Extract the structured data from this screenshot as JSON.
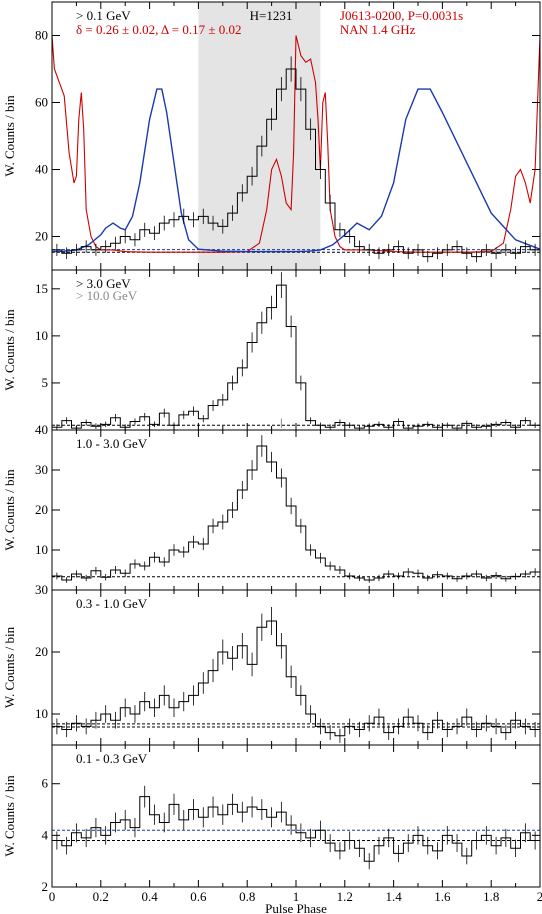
{
  "chart_data": [
    {
      "type": "line",
      "panel": "top",
      "ylabel": "W. Counts / bin",
      "ylim": [
        10,
        90
      ],
      "xlim": [
        0,
        2
      ],
      "yticks": [
        20,
        40,
        60,
        80
      ],
      "annotations": {
        "energy": "> 0.1 GeV",
        "h_test": "H=1231",
        "pulsar": "J0613-0200, P=0.0031s",
        "radio": "NAN 1.4 GHz",
        "delta": "δ = 0.26 ± 0.02, Δ = 0.17 ± 0.02"
      },
      "shaded_region": [
        0.6,
        1.1
      ],
      "background_levels": [
        15.3,
        16.1
      ],
      "profile": [
        16,
        15,
        16,
        17,
        16,
        17,
        18,
        20,
        19,
        22,
        21,
        24,
        25,
        26,
        25,
        26,
        24,
        23,
        27,
        33,
        38,
        47,
        55,
        64,
        70,
        64,
        52,
        40,
        30,
        22,
        20,
        17,
        16,
        15,
        16,
        17,
        15,
        16,
        14,
        15,
        16,
        17,
        15,
        14,
        16,
        15,
        16,
        15,
        17,
        16
      ],
      "radio_profile": {
        "x": [
          0,
          0.01,
          0.03,
          0.05,
          0.07,
          0.09,
          0.1,
          0.11,
          0.12,
          0.13,
          0.14,
          0.16,
          0.18,
          0.2,
          0.25,
          0.3,
          0.4,
          0.5,
          0.6,
          0.7,
          0.8,
          0.85,
          0.88,
          0.9,
          0.92,
          0.94,
          0.96,
          0.98,
          0.99,
          1.0,
          1.02,
          1.04,
          1.06,
          1.08,
          1.09,
          1.1,
          1.11,
          1.12,
          1.13,
          1.14,
          1.16,
          1.18,
          1.2,
          1.3,
          1.4,
          1.5,
          1.6,
          1.7,
          1.8,
          1.85,
          1.88,
          1.9,
          1.92,
          1.94,
          1.96,
          1.98,
          2.0
        ],
        "y": [
          80,
          70,
          66,
          62,
          45,
          36,
          38,
          55,
          63,
          52,
          28,
          20,
          17,
          16,
          16,
          15.5,
          15.3,
          15.3,
          15.3,
          15.3,
          15.5,
          18,
          28,
          40,
          43,
          38,
          30,
          28,
          45,
          80,
          74,
          72,
          73,
          66,
          55,
          40,
          60,
          63,
          48,
          28,
          20,
          17,
          16,
          16,
          15.5,
          15.3,
          15.3,
          15.3,
          15.5,
          18,
          28,
          38,
          40,
          36,
          30,
          40,
          80
        ]
      },
      "model": {
        "x": [
          0,
          0.05,
          0.1,
          0.15,
          0.2,
          0.22,
          0.25,
          0.28,
          0.3,
          0.33,
          0.36,
          0.4,
          0.43,
          0.45,
          0.47,
          0.5,
          0.53,
          0.56,
          0.6,
          0.7,
          0.8,
          0.9,
          1.0,
          1.05,
          1.1,
          1.15,
          1.2,
          1.25,
          1.3,
          1.35,
          1.4,
          1.45,
          1.5,
          1.55,
          1.6,
          1.7,
          1.8,
          1.9,
          2.0
        ],
        "y": [
          15.5,
          15.6,
          16,
          17.5,
          20.5,
          22.5,
          24,
          22.5,
          22,
          26,
          36,
          55,
          64,
          64,
          57,
          42,
          27,
          19,
          16.2,
          15.6,
          15.5,
          15.5,
          15.5,
          15.6,
          16,
          17.5,
          20.5,
          24,
          22,
          26,
          36,
          55,
          64,
          64,
          57,
          42,
          27,
          19,
          16.2
        ]
      }
    },
    {
      "type": "line",
      "panel": "high",
      "ylabel": "W. Counts / bin",
      "ylim": [
        0,
        17
      ],
      "yticks": [
        5,
        10,
        15
      ],
      "annotations": {
        "energy": "> 3.0 GeV",
        "energy2": "> 10.0 GeV"
      },
      "background_levels": [
        0.5
      ],
      "profile": [
        0.3,
        1.0,
        0.2,
        0.8,
        0.4,
        0.6,
        1.3,
        0.3,
        0.9,
        1.4,
        0.6,
        1.8,
        0.5,
        1.6,
        2.0,
        1.2,
        2.6,
        3.2,
        5.0,
        6.6,
        9.3,
        11.4,
        13.0,
        15.4,
        11.0,
        5.0,
        1.0,
        0.5,
        0.3,
        0.8,
        0.5,
        0.2,
        0.4,
        0.6,
        0.3,
        0.9,
        0.2,
        0.4,
        0.6,
        0.3,
        0.5,
        0.2,
        0.7,
        0.3,
        0.4,
        0.6,
        0.8,
        0.3,
        1.0,
        0.5
      ],
      "profile_high": [
        0,
        0,
        0,
        0,
        0,
        0,
        0,
        0,
        0,
        0,
        0,
        0,
        0,
        0,
        0,
        0,
        0,
        0,
        0,
        0,
        0,
        0,
        0,
        1.2,
        0,
        0,
        0,
        0,
        0,
        0,
        0,
        0,
        0,
        0,
        0,
        0,
        0,
        0,
        0,
        0,
        0,
        0,
        0,
        0,
        0,
        0,
        0,
        0,
        0,
        0
      ]
    },
    {
      "type": "line",
      "panel": "mid",
      "ylabel": "W. Counts / bin",
      "ylim": [
        0,
        40
      ],
      "yticks": [
        10,
        20,
        30,
        40
      ],
      "annotations": {
        "energy": "1.0 - 3.0 GeV"
      },
      "background_levels": [
        3.3
      ],
      "profile": [
        3.5,
        2.5,
        4.0,
        3.0,
        4.8,
        3.2,
        5.0,
        4.2,
        6.5,
        6.0,
        8.2,
        7.0,
        10.0,
        9.5,
        12.0,
        11.5,
        16.0,
        17.0,
        20.0,
        25.0,
        30.0,
        36.0,
        32.0,
        28.0,
        21.0,
        16.0,
        10.0,
        8.0,
        6.0,
        5.0,
        3.5,
        3.0,
        2.5,
        3.0,
        4.0,
        3.5,
        4.5,
        4.2,
        3.0,
        3.8,
        3.5,
        2.8,
        3.5,
        4.0,
        3.0,
        3.6,
        2.8,
        3.4,
        4.0,
        4.5
      ]
    },
    {
      "type": "line",
      "panel": "low",
      "ylabel": "W. Counts / bin",
      "ylim": [
        5,
        30
      ],
      "yticks": [
        10,
        20,
        30
      ],
      "annotations": {
        "energy": "0.3 - 1.0 GeV"
      },
      "background_levels": [
        7.9,
        8.4
      ],
      "profile": [
        8.0,
        7.5,
        8.5,
        8.0,
        9.0,
        10.0,
        9.0,
        11.0,
        10.0,
        12.0,
        11.0,
        13.0,
        11.0,
        12.0,
        13.0,
        15.0,
        17.0,
        20.0,
        19.0,
        21.0,
        18.0,
        24.0,
        25.0,
        21.0,
        16.0,
        13.0,
        10.0,
        8.0,
        7.0,
        6.5,
        8.0,
        7.5,
        8.5,
        9.5,
        7.0,
        8.0,
        9.5,
        8.5,
        7.0,
        9.0,
        7.5,
        8.0,
        9.5,
        7.5,
        8.5,
        8.0,
        7.0,
        9.0,
        8.0,
        7.5
      ]
    },
    {
      "type": "line",
      "panel": "lowest",
      "ylabel": "W. Counts / bin",
      "ylim": [
        2,
        7.5
      ],
      "yticks": [
        2,
        4,
        6
      ],
      "annotations": {
        "energy": "0.1 - 0.3 GeV"
      },
      "background_levels": [
        3.8,
        4.2
      ],
      "xlabel": "Pulse Phase",
      "xticks": [
        0,
        0.2,
        0.4,
        0.6,
        0.8,
        1,
        1.2,
        1.4,
        1.6,
        1.8,
        2
      ],
      "profile": [
        3.8,
        3.6,
        4.1,
        3.9,
        4.3,
        4.0,
        4.5,
        4.6,
        4.3,
        5.5,
        4.8,
        4.5,
        5.2,
        4.6,
        5.0,
        4.7,
        5.1,
        4.8,
        5.2,
        4.9,
        5.1,
        5.0,
        4.7,
        4.9,
        4.4,
        4.1,
        3.9,
        4.2,
        3.7,
        3.4,
        3.8,
        3.5,
        3.0,
        3.6,
        3.9,
        3.3,
        3.7,
        4.0,
        3.6,
        3.4,
        4.0,
        3.7,
        3.2,
        3.8,
        4.0,
        3.6,
        3.9,
        3.5,
        4.1,
        3.8
      ]
    }
  ]
}
